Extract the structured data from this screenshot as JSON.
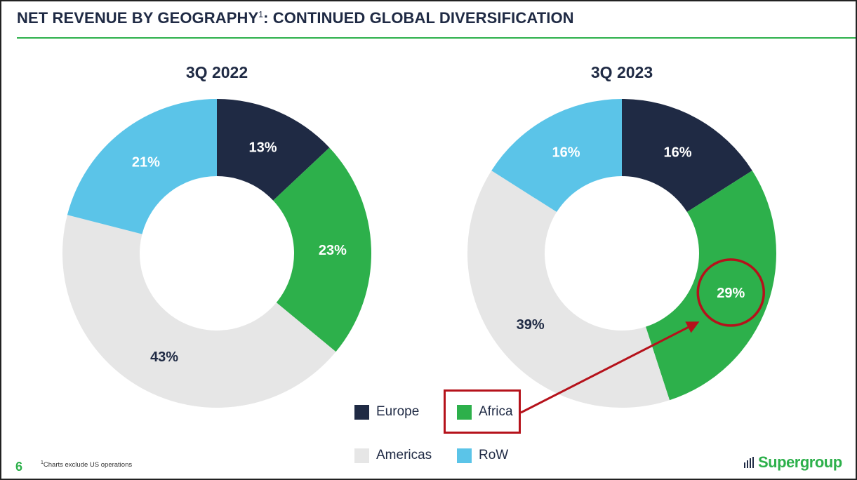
{
  "header": {
    "title_part1": "NET REVENUE BY GEOGRAPHY",
    "title_sup": "1",
    "title_part2": ": CONTINUED GLOBAL DIVERSIFICATION"
  },
  "colors": {
    "Europe": "#1f2a44",
    "Africa": "#2db04b",
    "Americas": "#e6e6e6",
    "RoW": "#5bc4e8",
    "accent": "#2db04b",
    "highlight": "#b5121b"
  },
  "chart_data": [
    {
      "type": "pie",
      "title": "3Q 2022",
      "categories": [
        "Europe",
        "Africa",
        "Americas",
        "RoW"
      ],
      "values": [
        13,
        23,
        43,
        21
      ],
      "labels": [
        "13%",
        "23%",
        "43%",
        "21%"
      ],
      "donut": true
    },
    {
      "type": "pie",
      "title": "3Q 2023",
      "categories": [
        "Europe",
        "Africa",
        "Americas",
        "RoW"
      ],
      "values": [
        16,
        29,
        39,
        16
      ],
      "labels": [
        "16%",
        "29%",
        "39%",
        "16%"
      ],
      "donut": true,
      "highlighted": "Africa"
    }
  ],
  "legend": [
    {
      "label": "Europe",
      "swatch_icon": "square-swatch"
    },
    {
      "label": "Africa",
      "swatch_icon": "square-swatch"
    },
    {
      "label": "Americas",
      "swatch_icon": "square-swatch"
    },
    {
      "label": "RoW",
      "swatch_icon": "square-swatch"
    }
  ],
  "footer": {
    "page_number": "6",
    "footnote_sup": "1",
    "footnote": "Charts exclude US operations",
    "logo_text": "Supergroup"
  }
}
